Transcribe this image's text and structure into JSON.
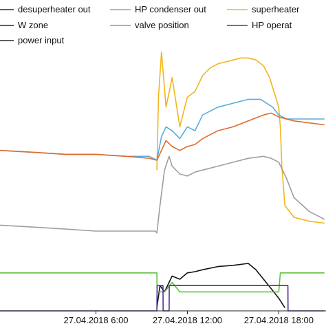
{
  "chart_data": {
    "type": "line",
    "title": "",
    "xlabel": "",
    "ylabel": "",
    "grid": false,
    "legend_placement": "top",
    "x_ticks": [
      "27.04.2018 6:00",
      "27.04.2018 12:00",
      "27.04.2018 18:00"
    ],
    "x_unit": "hours since 27.04.2018 0:00",
    "xlim": [
      -0.3,
      21.1
    ],
    "ylim_main": [
      0,
      100
    ],
    "ylim_lower": [
      0,
      100
    ],
    "legend": [
      {
        "label": "desuperheater out",
        "color": "#2a2a2a"
      },
      {
        "label": "HP condenser out",
        "color": "#9e9e9e"
      },
      {
        "label": "superheater",
        "color": "#f2b51c"
      },
      {
        "label": "W zone",
        "color": "#2a2a2a"
      },
      {
        "label": "valve position",
        "color": "#5cc23c"
      },
      {
        "label": "HP operat",
        "color": "#5330a0"
      },
      {
        "label": "power input",
        "color": "#2a2a2a"
      }
    ],
    "series": [
      {
        "name": "superheater",
        "panel": "main",
        "color": "#f2b51c",
        "x": [
          10,
          10.1,
          10.3,
          10.6,
          11,
          11.5,
          12,
          12.5,
          13,
          13.5,
          14,
          14.5,
          15,
          15.5,
          16,
          16.5,
          17,
          17.4,
          17.8,
          18,
          18.1,
          18.2,
          18.4,
          19,
          20,
          21
        ],
        "y": [
          38,
          75,
          98,
          70,
          85,
          60,
          75,
          78,
          86,
          90,
          92,
          93,
          94,
          95,
          95,
          94,
          91,
          85,
          75,
          70,
          60,
          40,
          20,
          14,
          12,
          11
        ]
      },
      {
        "name": "",
        "panel": "main",
        "color": "#5aaadd",
        "x": [
          -0.3,
          2,
          4,
          6,
          8,
          9.5,
          10,
          10.3,
          10.6,
          11,
          11.5,
          12,
          12.5,
          13,
          14,
          15,
          16,
          16.8,
          17.2,
          17.6,
          18,
          18.5,
          19,
          20,
          21
        ],
        "y": [
          48,
          47,
          46,
          46,
          45,
          45,
          43,
          55,
          60,
          58,
          54,
          60,
          58,
          66,
          70,
          72,
          74,
          74,
          72,
          70,
          66,
          64,
          64,
          64,
          64
        ]
      },
      {
        "name": "",
        "panel": "main",
        "color": "#e06a2a",
        "x": [
          -0.3,
          2,
          4,
          6,
          8,
          9.5,
          10,
          10.3,
          10.6,
          11,
          11.5,
          12,
          12.5,
          13,
          14,
          15,
          16,
          17,
          17.5,
          18,
          19,
          20,
          21
        ],
        "y": [
          48,
          47,
          46,
          46,
          45,
          44,
          43,
          48,
          53,
          50,
          48,
          50,
          51,
          54,
          58,
          60,
          63,
          66,
          67,
          65,
          63,
          62,
          61
        ]
      },
      {
        "name": "HP condenser out",
        "panel": "main",
        "color": "#9e9e9e",
        "x": [
          -0.3,
          2,
          4,
          6,
          8,
          9.5,
          9.9,
          10,
          10.2,
          10.5,
          10.8,
          11,
          11.5,
          12,
          12.5,
          13,
          14,
          15,
          16,
          17,
          17.5,
          18,
          18.5,
          19,
          20,
          21
        ],
        "y": [
          10,
          9,
          8,
          7,
          7,
          7,
          7,
          6,
          20,
          38,
          45,
          40,
          36,
          35,
          37,
          38,
          40,
          42,
          44,
          45,
          44,
          42,
          34,
          24,
          17,
          13
        ]
      }
    ],
    "lower_series": [
      {
        "name": "",
        "color": "#111111",
        "x": [
          10,
          10.2,
          10.5,
          11,
          11.5,
          12,
          12.5,
          13,
          14,
          15,
          16,
          16.5,
          17,
          17.5,
          18,
          18.4
        ],
        "y": [
          5,
          40,
          30,
          55,
          50,
          60,
          62,
          65,
          70,
          72,
          75,
          65,
          50,
          35,
          20,
          5
        ]
      },
      {
        "name": "valve position",
        "color": "#5cc23c",
        "x": [
          -0.3,
          10,
          10.01,
          10.5,
          11,
          11.5,
          12,
          13,
          14,
          15,
          16,
          17,
          18,
          18.1,
          21
        ],
        "y": [
          60,
          60,
          30,
          30,
          45,
          30,
          30,
          30,
          30,
          30,
          30,
          30,
          30,
          60,
          60
        ]
      },
      {
        "name": "HP operat",
        "color": "#5330a0",
        "x": [
          -0.3,
          10,
          10.01,
          10.4,
          10.41,
          10.8,
          10.81,
          11.2,
          11.21,
          18.6,
          18.61,
          21
        ],
        "y": [
          0,
          0,
          40,
          40,
          0,
          0,
          40,
          40,
          40,
          40,
          0,
          0
        ]
      }
    ]
  }
}
